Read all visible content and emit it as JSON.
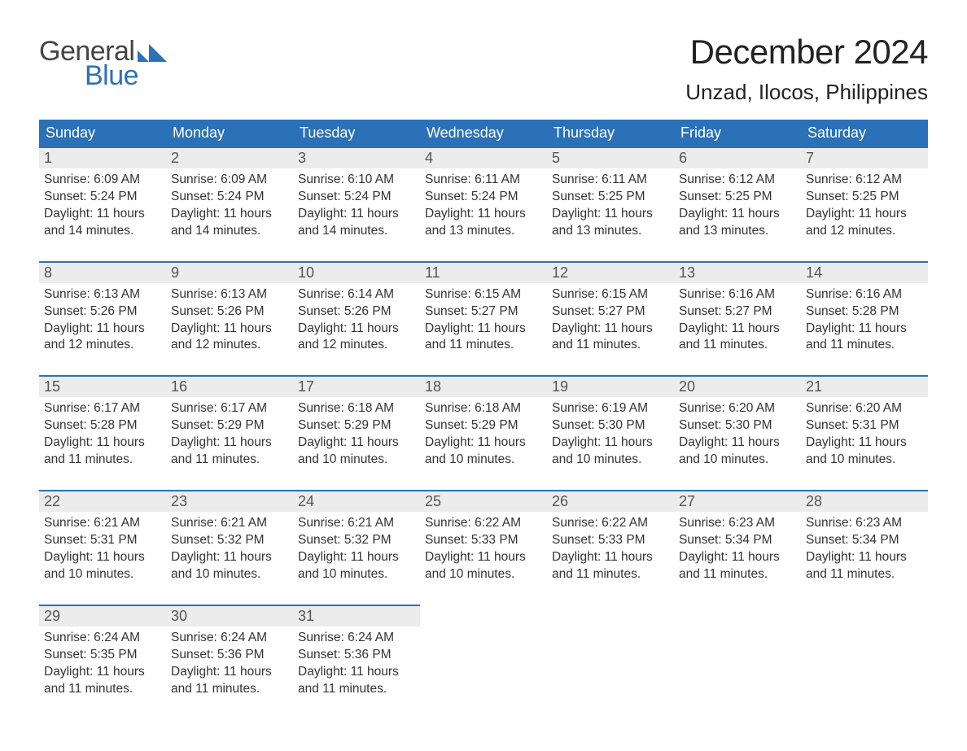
{
  "logo": {
    "word1": "General",
    "word2": "Blue"
  },
  "title": "December 2024",
  "location": "Unzad, Ilocos, Philippines",
  "colors": {
    "header_bg": "#2a71b8",
    "day_num_bg": "#ececec",
    "day_border": "#2a71b8",
    "page_bg": "#ffffff",
    "text": "#333333"
  },
  "day_headers": [
    "Sunday",
    "Monday",
    "Tuesday",
    "Wednesday",
    "Thursday",
    "Friday",
    "Saturday"
  ],
  "weeks": [
    [
      {
        "n": "1",
        "sunrise": "6:09 AM",
        "sunset": "5:24 PM",
        "daylight": "11 hours and 14 minutes."
      },
      {
        "n": "2",
        "sunrise": "6:09 AM",
        "sunset": "5:24 PM",
        "daylight": "11 hours and 14 minutes."
      },
      {
        "n": "3",
        "sunrise": "6:10 AM",
        "sunset": "5:24 PM",
        "daylight": "11 hours and 14 minutes."
      },
      {
        "n": "4",
        "sunrise": "6:11 AM",
        "sunset": "5:24 PM",
        "daylight": "11 hours and 13 minutes."
      },
      {
        "n": "5",
        "sunrise": "6:11 AM",
        "sunset": "5:25 PM",
        "daylight": "11 hours and 13 minutes."
      },
      {
        "n": "6",
        "sunrise": "6:12 AM",
        "sunset": "5:25 PM",
        "daylight": "11 hours and 13 minutes."
      },
      {
        "n": "7",
        "sunrise": "6:12 AM",
        "sunset": "5:25 PM",
        "daylight": "11 hours and 12 minutes."
      }
    ],
    [
      {
        "n": "8",
        "sunrise": "6:13 AM",
        "sunset": "5:26 PM",
        "daylight": "11 hours and 12 minutes."
      },
      {
        "n": "9",
        "sunrise": "6:13 AM",
        "sunset": "5:26 PM",
        "daylight": "11 hours and 12 minutes."
      },
      {
        "n": "10",
        "sunrise": "6:14 AM",
        "sunset": "5:26 PM",
        "daylight": "11 hours and 12 minutes."
      },
      {
        "n": "11",
        "sunrise": "6:15 AM",
        "sunset": "5:27 PM",
        "daylight": "11 hours and 11 minutes."
      },
      {
        "n": "12",
        "sunrise": "6:15 AM",
        "sunset": "5:27 PM",
        "daylight": "11 hours and 11 minutes."
      },
      {
        "n": "13",
        "sunrise": "6:16 AM",
        "sunset": "5:27 PM",
        "daylight": "11 hours and 11 minutes."
      },
      {
        "n": "14",
        "sunrise": "6:16 AM",
        "sunset": "5:28 PM",
        "daylight": "11 hours and 11 minutes."
      }
    ],
    [
      {
        "n": "15",
        "sunrise": "6:17 AM",
        "sunset": "5:28 PM",
        "daylight": "11 hours and 11 minutes."
      },
      {
        "n": "16",
        "sunrise": "6:17 AM",
        "sunset": "5:29 PM",
        "daylight": "11 hours and 11 minutes."
      },
      {
        "n": "17",
        "sunrise": "6:18 AM",
        "sunset": "5:29 PM",
        "daylight": "11 hours and 10 minutes."
      },
      {
        "n": "18",
        "sunrise": "6:18 AM",
        "sunset": "5:29 PM",
        "daylight": "11 hours and 10 minutes."
      },
      {
        "n": "19",
        "sunrise": "6:19 AM",
        "sunset": "5:30 PM",
        "daylight": "11 hours and 10 minutes."
      },
      {
        "n": "20",
        "sunrise": "6:20 AM",
        "sunset": "5:30 PM",
        "daylight": "11 hours and 10 minutes."
      },
      {
        "n": "21",
        "sunrise": "6:20 AM",
        "sunset": "5:31 PM",
        "daylight": "11 hours and 10 minutes."
      }
    ],
    [
      {
        "n": "22",
        "sunrise": "6:21 AM",
        "sunset": "5:31 PM",
        "daylight": "11 hours and 10 minutes."
      },
      {
        "n": "23",
        "sunrise": "6:21 AM",
        "sunset": "5:32 PM",
        "daylight": "11 hours and 10 minutes."
      },
      {
        "n": "24",
        "sunrise": "6:21 AM",
        "sunset": "5:32 PM",
        "daylight": "11 hours and 10 minutes."
      },
      {
        "n": "25",
        "sunrise": "6:22 AM",
        "sunset": "5:33 PM",
        "daylight": "11 hours and 10 minutes."
      },
      {
        "n": "26",
        "sunrise": "6:22 AM",
        "sunset": "5:33 PM",
        "daylight": "11 hours and 11 minutes."
      },
      {
        "n": "27",
        "sunrise": "6:23 AM",
        "sunset": "5:34 PM",
        "daylight": "11 hours and 11 minutes."
      },
      {
        "n": "28",
        "sunrise": "6:23 AM",
        "sunset": "5:34 PM",
        "daylight": "11 hours and 11 minutes."
      }
    ],
    [
      {
        "n": "29",
        "sunrise": "6:24 AM",
        "sunset": "5:35 PM",
        "daylight": "11 hours and 11 minutes."
      },
      {
        "n": "30",
        "sunrise": "6:24 AM",
        "sunset": "5:36 PM",
        "daylight": "11 hours and 11 minutes."
      },
      {
        "n": "31",
        "sunrise": "6:24 AM",
        "sunset": "5:36 PM",
        "daylight": "11 hours and 11 minutes."
      },
      null,
      null,
      null,
      null
    ]
  ],
  "labels": {
    "sunrise": "Sunrise: ",
    "sunset": "Sunset: ",
    "daylight": "Daylight: "
  }
}
